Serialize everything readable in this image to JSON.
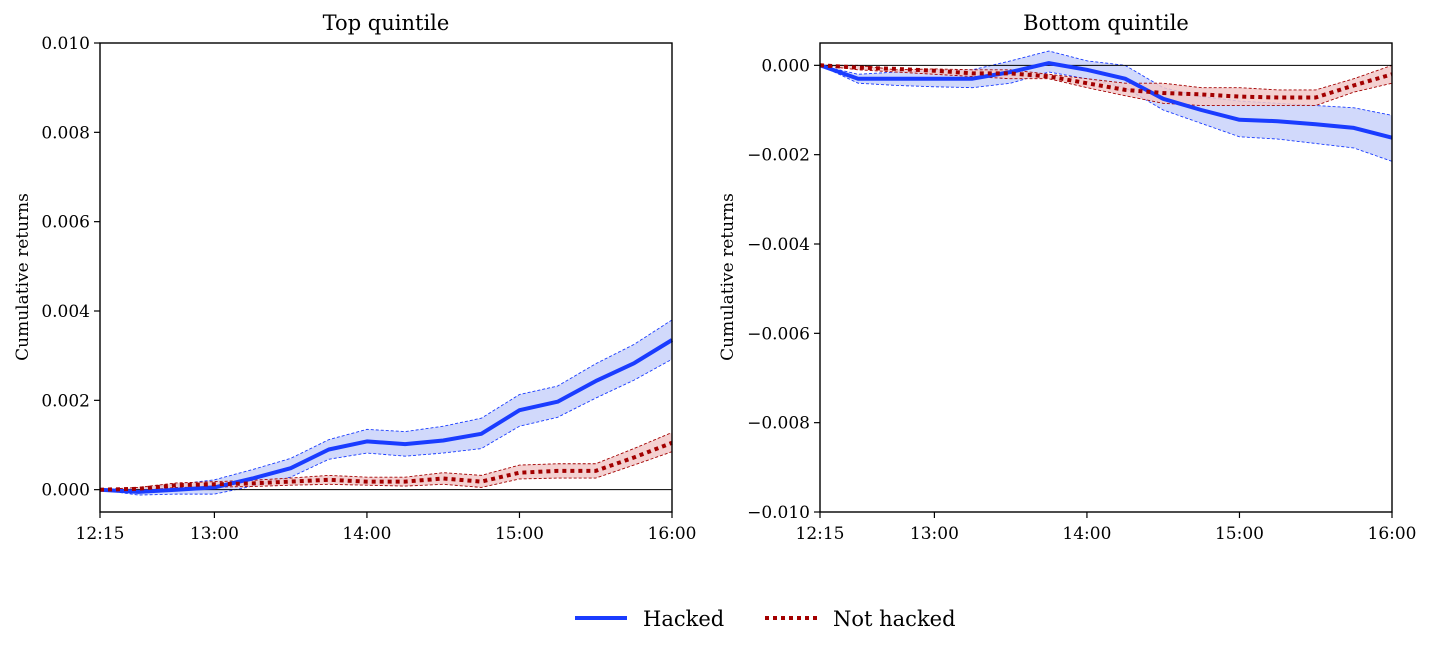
{
  "colors": {
    "hacked": "#1a3cff",
    "hacked_fill": "#c9d2fa",
    "not_hacked": "#a30000",
    "not_hacked_fill": "#f2c9c9"
  },
  "legend": {
    "hacked": "Hacked",
    "not_hacked": "Not hacked"
  },
  "chart_data": [
    {
      "type": "line",
      "title": "Top quintile",
      "xlabel": "",
      "ylabel": "Cumulative returns",
      "x": [
        "12:15",
        "12:30",
        "12:45",
        "13:00",
        "13:15",
        "13:30",
        "13:45",
        "14:00",
        "14:15",
        "14:30",
        "14:45",
        "15:00",
        "15:15",
        "15:30",
        "15:45",
        "16:00"
      ],
      "xticks": [
        "12:15",
        "13:00",
        "14:00",
        "15:00",
        "16:00"
      ],
      "yticks": [
        "0.000",
        "0.002",
        "0.004",
        "0.006",
        "0.008",
        "0.010"
      ],
      "ylim": [
        -0.0005,
        0.01
      ],
      "series": [
        {
          "name": "Hacked",
          "values": [
            0.0,
            -5e-05,
            0.0,
            5e-05,
            0.00025,
            0.00048,
            0.0009,
            0.00108,
            0.00102,
            0.0011,
            0.00125,
            0.00178,
            0.00197,
            0.00243,
            0.00283,
            0.00335
          ],
          "lower": [
            0.0,
            -0.00012,
            -0.0001,
            -0.0001,
            8e-05,
            0.00028,
            0.00068,
            0.00082,
            0.00075,
            0.00082,
            0.00092,
            0.00142,
            0.00162,
            0.00205,
            0.00245,
            0.00292
          ],
          "upper": [
            0.0,
            2e-05,
            0.00012,
            0.00022,
            0.00045,
            0.0007,
            0.00112,
            0.00135,
            0.0013,
            0.00142,
            0.0016,
            0.00213,
            0.00232,
            0.00282,
            0.00325,
            0.0038
          ]
        },
        {
          "name": "Not hacked",
          "values": [
            0.0,
            2e-05,
            0.0001,
            0.00012,
            0.00014,
            0.00018,
            0.00022,
            0.00018,
            0.00018,
            0.00025,
            0.00018,
            0.00038,
            0.00042,
            0.00042,
            0.00072,
            0.00105
          ],
          "lower": [
            0.0,
            -2e-05,
            5e-05,
            6e-05,
            7e-05,
            0.0001,
            0.00012,
            0.0001,
            8e-05,
            0.00012,
            5e-05,
            0.00024,
            0.00026,
            0.00026,
            0.00055,
            0.00085
          ],
          "upper": [
            0.0,
            5e-05,
            0.00015,
            0.00018,
            0.00021,
            0.00026,
            0.00032,
            0.00028,
            0.00028,
            0.00038,
            0.00032,
            0.00055,
            0.00058,
            0.00058,
            0.00092,
            0.00128
          ]
        }
      ]
    },
    {
      "type": "line",
      "title": "Bottom quintile",
      "xlabel": "",
      "ylabel": "Cumulative returns",
      "x": [
        "12:15",
        "12:30",
        "12:45",
        "13:00",
        "13:15",
        "13:30",
        "13:45",
        "14:00",
        "14:15",
        "14:30",
        "14:45",
        "15:00",
        "15:15",
        "15:30",
        "15:45",
        "16:00"
      ],
      "xticks": [
        "12:15",
        "13:00",
        "14:00",
        "15:00",
        "16:00"
      ],
      "yticks": [
        "0.000",
        "−0.002",
        "−0.004",
        "−0.006",
        "−0.008",
        "−0.010"
      ],
      "ylim": [
        -0.01,
        0.0005
      ],
      "series": [
        {
          "name": "Hacked",
          "values": [
            0.0,
            -0.0003,
            -0.0003,
            -0.0003,
            -0.0003,
            -0.00015,
            5e-05,
            -0.0001,
            -0.0003,
            -0.00075,
            -0.001,
            -0.00122,
            -0.00125,
            -0.00132,
            -0.0014,
            -0.00162
          ],
          "lower": [
            0.0,
            -0.0004,
            -0.00045,
            -0.00048,
            -0.0005,
            -0.0004,
            -0.00015,
            -0.0003,
            -0.0005,
            -0.001,
            -0.0013,
            -0.0016,
            -0.00165,
            -0.00175,
            -0.00185,
            -0.00215
          ],
          "upper": [
            0.0,
            -0.0002,
            -0.00015,
            -0.00012,
            -0.0001,
            0.0001,
            0.00032,
            0.0001,
            0.0,
            -0.0005,
            -0.0007,
            -0.0008,
            -0.00085,
            -0.0009,
            -0.00095,
            -0.00112
          ]
        },
        {
          "name": "Not hacked",
          "values": [
            0.0,
            -5e-05,
            -8e-05,
            -0.00012,
            -0.00018,
            -0.00018,
            -0.00025,
            -0.0004,
            -0.00055,
            -0.00062,
            -0.00065,
            -0.0007,
            -0.00072,
            -0.00072,
            -0.00045,
            -0.0002
          ],
          "lower": [
            0.0,
            -0.0001,
            -0.00015,
            -0.0002,
            -0.00025,
            -0.0003,
            -0.0003,
            -0.0005,
            -0.00068,
            -0.00085,
            -0.0009,
            -0.0009,
            -0.0009,
            -0.0009,
            -0.0006,
            -0.0004
          ],
          "upper": [
            0.0,
            0.0,
            -0.0001,
            -8e-05,
            -0.0001,
            -0.0001,
            -0.0002,
            -0.0003,
            -0.0004,
            -0.0004,
            -0.0005,
            -0.0005,
            -0.00055,
            -0.00055,
            -0.0003,
            0.0
          ]
        }
      ]
    }
  ]
}
